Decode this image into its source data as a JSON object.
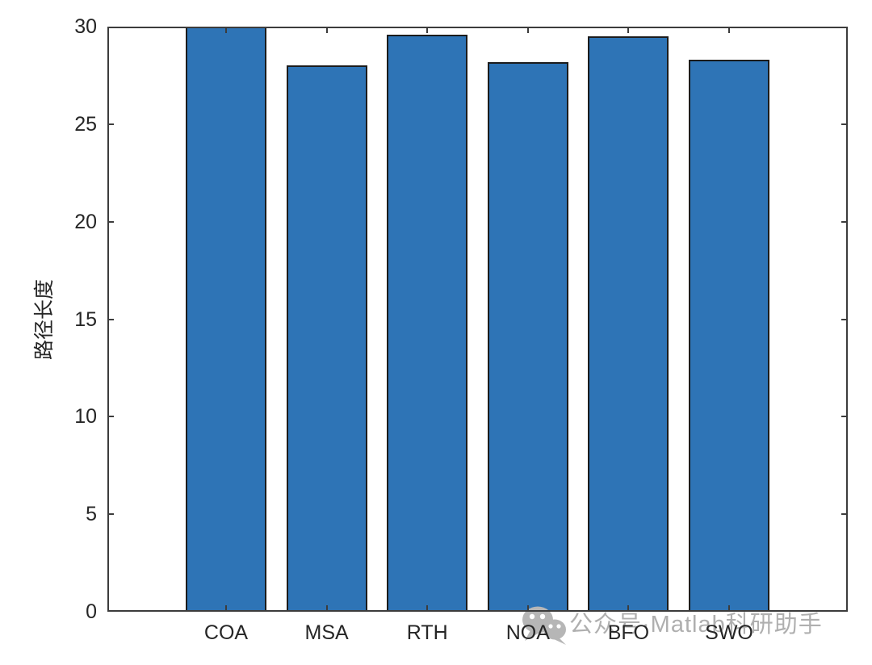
{
  "figure": {
    "background": "#ffffff"
  },
  "chart_data": {
    "type": "bar",
    "categories": [
      "COA",
      "MSA",
      "RTH",
      "NOA",
      "BFO",
      "SWO"
    ],
    "values": [
      30,
      28,
      29.6,
      28.2,
      29.5,
      28.3
    ],
    "title": "",
    "xlabel": "",
    "ylabel": "路径长度",
    "ylim": [
      0,
      30
    ],
    "yticks": [
      0,
      5,
      10,
      15,
      20,
      25,
      30
    ],
    "grid": false,
    "legend": "none",
    "box": true,
    "tick_direction": "in",
    "bar_color": "#2E74B6",
    "bar_edge_color": "#1C1C1C",
    "axis_color": "#3C3C3C",
    "tick_label_color": "#262626"
  },
  "watermark": {
    "icon": "wechat-icon",
    "text": "公众号·Matlab科研助手",
    "color": "#AFAFAF"
  }
}
